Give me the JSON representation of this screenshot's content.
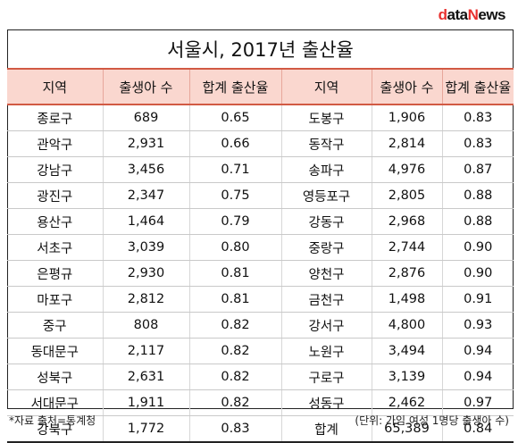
{
  "logo": {
    "d": "d",
    "rest": "ata",
    "n": "N",
    "ews": "ews"
  },
  "title": "서울시, 2017년 출산율",
  "headers": [
    "지역",
    "출생아 수",
    "합계 출산율",
    "지역",
    "출생아 수",
    "합계 출산율"
  ],
  "rows": [
    [
      "종로구",
      "689",
      "0.65",
      "도봉구",
      "1,906",
      "0.83"
    ],
    [
      "관악구",
      "2,931",
      "0.66",
      "동작구",
      "2,814",
      "0.83"
    ],
    [
      "강남구",
      "3,456",
      "0.71",
      "송파구",
      "4,976",
      "0.87"
    ],
    [
      "광진구",
      "2,347",
      "0.75",
      "영등포구",
      "2,805",
      "0.88"
    ],
    [
      "용산구",
      "1,464",
      "0.79",
      "강동구",
      "2,968",
      "0.88"
    ],
    [
      "서초구",
      "3,039",
      "0.80",
      "중랑구",
      "2,744",
      "0.90"
    ],
    [
      "은평규",
      "2,930",
      "0.81",
      "양천구",
      "2,876",
      "0.90"
    ],
    [
      "마포구",
      "2,812",
      "0.81",
      "금천구",
      "1,498",
      "0.91"
    ],
    [
      "중구",
      "808",
      "0.82",
      "강서구",
      "4,800",
      "0.93"
    ],
    [
      "동대문구",
      "2,117",
      "0.82",
      "노원구",
      "3,494",
      "0.94"
    ],
    [
      "성북구",
      "2,631",
      "0.82",
      "구로구",
      "3,139",
      "0.94"
    ],
    [
      "서대문구",
      "1,911",
      "0.82",
      "성동구",
      "2,462",
      "0.97"
    ],
    [
      "강북구",
      "1,772",
      "0.83",
      "합계",
      "65,389",
      "0.84"
    ]
  ],
  "footnote_left": "*자료 출처=통계청",
  "footnote_right": "(단위: 가임 여성 1명당 출생아 수)"
}
